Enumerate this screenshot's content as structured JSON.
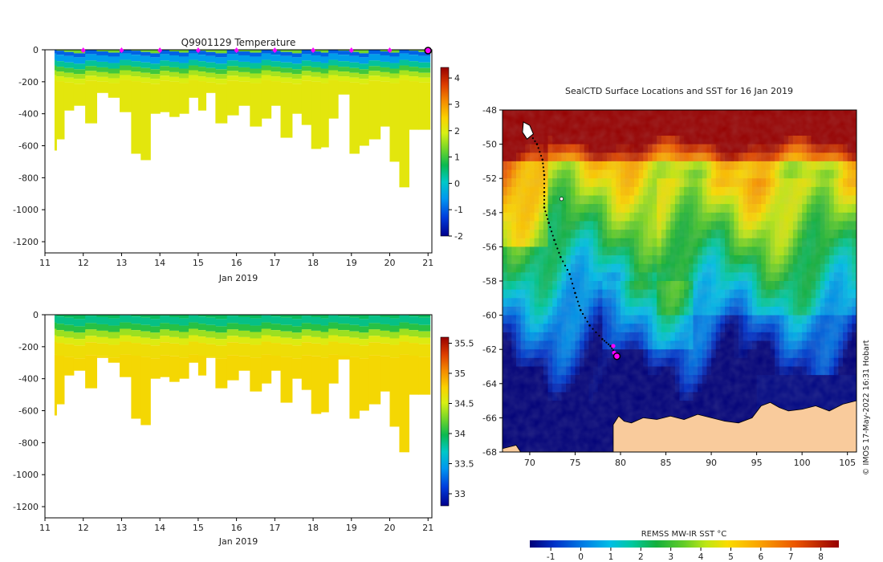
{
  "credit": "© IMOS 17-May-2022 16:31 Hobart",
  "colors": {
    "land": "#f9cb9c",
    "track": "#000000",
    "marker": "#ff00ff",
    "shallow_water": "#12a84a"
  },
  "chart_data": [
    {
      "id": "temperature",
      "type": "heatmap",
      "title": "Q9901129  Temperature",
      "xlabel": "Jan 2019",
      "ylabel": "",
      "xlim": [
        11,
        21.1
      ],
      "ylim": [
        -1270,
        0
      ],
      "xticks": [
        11,
        12,
        13,
        14,
        15,
        16,
        17,
        18,
        19,
        20,
        21
      ],
      "yticks": [
        0,
        -200,
        -400,
        -600,
        -800,
        -1000,
        -1200
      ],
      "colorbar": {
        "min": -2,
        "max": 4.4,
        "ticks": [
          4,
          3,
          2,
          1,
          0,
          -1,
          -2
        ]
      },
      "surface_markers_x": [
        12,
        13,
        14,
        15,
        16,
        17,
        18,
        19,
        20
      ],
      "current_marker_x": 21,
      "profile_times": [
        11.2,
        11.4,
        11.6,
        11.9,
        12.2,
        12.5,
        12.8,
        13.1,
        13.4,
        13.6,
        13.9,
        14.1,
        14.4,
        14.6,
        14.9,
        15.1,
        15.3,
        15.6,
        15.9,
        16.2,
        16.5,
        16.8,
        17.0,
        17.3,
        17.6,
        17.8,
        18.1,
        18.3,
        18.5,
        18.8,
        19.1,
        19.3,
        19.6,
        19.9,
        20.1,
        20.4,
        20.6,
        20.9
      ],
      "profile_max_depths": [
        630,
        560,
        380,
        350,
        460,
        270,
        300,
        390,
        650,
        690,
        400,
        390,
        420,
        400,
        300,
        380,
        270,
        460,
        410,
        350,
        480,
        430,
        350,
        550,
        400,
        470,
        620,
        610,
        430,
        280,
        650,
        600,
        560,
        480,
        700,
        860,
        500,
        500
      ],
      "bands": [
        {
          "depth": 10,
          "value": 1.3
        },
        {
          "depth": 35,
          "value": -1.0
        },
        {
          "depth": 75,
          "value": -0.5
        },
        {
          "depth": 110,
          "value": 0.3
        },
        {
          "depth": 140,
          "value": 1.0
        },
        {
          "depth": 170,
          "value": 1.6
        },
        {
          "depth": 200,
          "value": 1.95
        },
        {
          "depth": 9999,
          "value": 2.1
        }
      ]
    },
    {
      "id": "salinity",
      "type": "heatmap",
      "title": "",
      "xlabel": "Jan 2019",
      "ylabel": "",
      "xlim": [
        11,
        21.1
      ],
      "ylim": [
        -1270,
        0
      ],
      "xticks": [
        11,
        12,
        13,
        14,
        15,
        16,
        17,
        18,
        19,
        20,
        21
      ],
      "yticks": [
        0,
        -200,
        -400,
        -600,
        -800,
        -1000,
        -1200
      ],
      "colorbar": {
        "min": 32.8,
        "max": 35.6,
        "ticks": [
          35.5,
          35,
          34.5,
          34,
          33.5,
          33
        ]
      },
      "bands": [
        {
          "depth": 15,
          "value": 33.95
        },
        {
          "depth": 60,
          "value": 33.85
        },
        {
          "depth": 100,
          "value": 34.05
        },
        {
          "depth": 140,
          "value": 34.35
        },
        {
          "depth": 180,
          "value": 34.55
        },
        {
          "depth": 260,
          "value": 34.67
        },
        {
          "depth": 9999,
          "value": 34.72
        }
      ]
    },
    {
      "id": "sst-map",
      "type": "heatmap",
      "title": "SealCTD Surface Locations and SST for 16 Jan 2019",
      "xlabel": "",
      "ylabel": "",
      "xlim": [
        67,
        106
      ],
      "ylim": [
        -68,
        -48
      ],
      "xticks": [
        70,
        75,
        80,
        85,
        90,
        95,
        100,
        105
      ],
      "yticks": [
        -48,
        -50,
        -52,
        -54,
        -56,
        -58,
        -60,
        -62,
        -64,
        -66,
        -68
      ],
      "colorbar": {
        "label": "REMSS MW-IR SST °C",
        "min": -1.7,
        "max": 8.6,
        "ticks": [
          -1,
          0,
          1,
          2,
          3,
          4,
          5,
          6,
          7,
          8
        ]
      },
      "track": [
        [
          69.9,
          -49.3
        ],
        [
          70.8,
          -50.0
        ],
        [
          71.4,
          -50.9
        ],
        [
          71.6,
          -51.8
        ],
        [
          71.6,
          -52.8
        ],
        [
          71.6,
          -53.7
        ],
        [
          72.1,
          -54.6
        ],
        [
          72.7,
          -55.6
        ],
        [
          73.4,
          -56.6
        ],
        [
          74.4,
          -57.6
        ],
        [
          75.0,
          -58.7
        ],
        [
          75.6,
          -59.7
        ],
        [
          76.6,
          -60.6
        ],
        [
          78.0,
          -61.4
        ],
        [
          78.9,
          -61.8
        ],
        [
          79.5,
          -62.3
        ]
      ],
      "track_end": [
        79.6,
        -62.4
      ],
      "magenta_points": [
        [
          79.2,
          -61.8
        ],
        [
          79.3,
          -62.2
        ],
        [
          79.5,
          -62.3
        ]
      ],
      "ice_patch": [
        73.5,
        -53.2
      ]
    }
  ]
}
